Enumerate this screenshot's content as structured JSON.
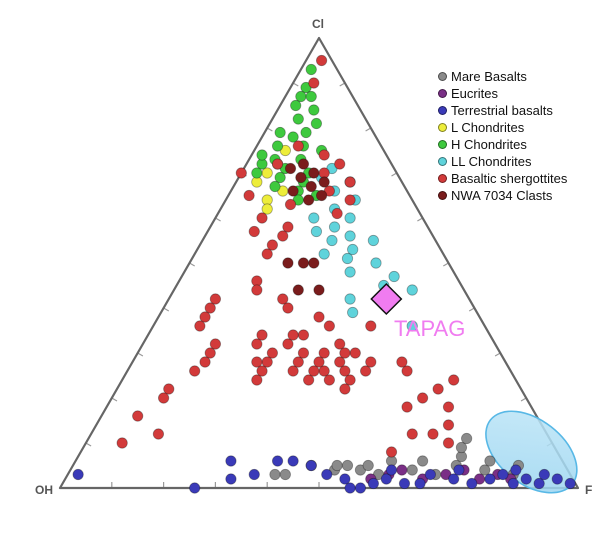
{
  "chart_data": {
    "type": "scatter",
    "subtype": "ternary",
    "vertices": {
      "top": "Cl",
      "left": "OH",
      "right": "F"
    },
    "legend_position": "top-right",
    "series": [
      {
        "name": "Mare Basalts",
        "color": "#8a8a8a",
        "points": [
          [
            0.03,
            0.57,
            0.4
          ],
          [
            0.03,
            0.55,
            0.42
          ],
          [
            0.05,
            0.49,
            0.46
          ],
          [
            0.04,
            0.45,
            0.51
          ],
          [
            0.05,
            0.44,
            0.51
          ],
          [
            0.05,
            0.42,
            0.53
          ],
          [
            0.04,
            0.4,
            0.56
          ],
          [
            0.05,
            0.38,
            0.57
          ],
          [
            0.03,
            0.37,
            0.6
          ],
          [
            0.06,
            0.33,
            0.61
          ],
          [
            0.04,
            0.3,
            0.66
          ],
          [
            0.06,
            0.27,
            0.67
          ],
          [
            0.03,
            0.26,
            0.71
          ],
          [
            0.05,
            0.21,
            0.74
          ],
          [
            0.07,
            0.19,
            0.74
          ],
          [
            0.04,
            0.16,
            0.8
          ],
          [
            0.06,
            0.14,
            0.8
          ],
          [
            0.09,
            0.18,
            0.73
          ],
          [
            0.11,
            0.16,
            0.73
          ],
          [
            0.03,
            0.11,
            0.86
          ],
          [
            0.05,
            0.09,
            0.86
          ]
        ]
      },
      {
        "name": "Eucrites",
        "color": "#7a2f86",
        "points": [
          [
            0.02,
            0.39,
            0.59
          ],
          [
            0.03,
            0.35,
            0.62
          ],
          [
            0.04,
            0.32,
            0.64
          ],
          [
            0.02,
            0.29,
            0.69
          ],
          [
            0.03,
            0.24,
            0.73
          ],
          [
            0.04,
            0.2,
            0.76
          ],
          [
            0.02,
            0.18,
            0.8
          ],
          [
            0.03,
            0.14,
            0.83
          ],
          [
            0.02,
            0.12,
            0.86
          ]
        ]
      },
      {
        "name": "Terrestrial basalts",
        "color": "#3a3ab8",
        "points": [
          [
            0.03,
            0.95,
            0.02
          ],
          [
            0.0,
            0.74,
            0.26
          ],
          [
            0.02,
            0.66,
            0.32
          ],
          [
            0.06,
            0.64,
            0.3
          ],
          [
            0.03,
            0.61,
            0.36
          ],
          [
            0.06,
            0.55,
            0.39
          ],
          [
            0.06,
            0.52,
            0.42
          ],
          [
            0.05,
            0.49,
            0.46
          ],
          [
            0.03,
            0.47,
            0.5
          ],
          [
            0.02,
            0.44,
            0.54
          ],
          [
            0.0,
            0.44,
            0.56
          ],
          [
            0.0,
            0.42,
            0.58
          ],
          [
            0.01,
            0.39,
            0.6
          ],
          [
            0.02,
            0.36,
            0.62
          ],
          [
            0.01,
            0.33,
            0.66
          ],
          [
            0.04,
            0.34,
            0.62
          ],
          [
            0.01,
            0.3,
            0.69
          ],
          [
            0.03,
            0.27,
            0.7
          ],
          [
            0.02,
            0.23,
            0.75
          ],
          [
            0.01,
            0.2,
            0.79
          ],
          [
            0.04,
            0.21,
            0.75
          ],
          [
            0.02,
            0.16,
            0.82
          ],
          [
            0.03,
            0.13,
            0.84
          ],
          [
            0.01,
            0.12,
            0.87
          ],
          [
            0.02,
            0.09,
            0.89
          ],
          [
            0.04,
            0.1,
            0.86
          ],
          [
            0.01,
            0.07,
            0.92
          ],
          [
            0.03,
            0.05,
            0.92
          ],
          [
            0.02,
            0.03,
            0.95
          ],
          [
            0.01,
            0.01,
            0.98
          ]
        ]
      },
      {
        "name": "L Chondrites",
        "color": "#eded3a",
        "points": [
          [
            0.72,
            0.22,
            0.06
          ],
          [
            0.75,
            0.19,
            0.06
          ],
          [
            0.64,
            0.28,
            0.08
          ],
          [
            0.68,
            0.28,
            0.04
          ],
          [
            0.7,
            0.25,
            0.05
          ],
          [
            0.66,
            0.24,
            0.1
          ],
          [
            0.62,
            0.29,
            0.09
          ]
        ]
      },
      {
        "name": "H Chondrites",
        "color": "#3ec93e",
        "points": [
          [
            0.93,
            0.05,
            0.02
          ],
          [
            0.89,
            0.08,
            0.03
          ],
          [
            0.87,
            0.1,
            0.03
          ],
          [
            0.87,
            0.08,
            0.05
          ],
          [
            0.85,
            0.12,
            0.03
          ],
          [
            0.84,
            0.09,
            0.07
          ],
          [
            0.82,
            0.13,
            0.05
          ],
          [
            0.81,
            0.1,
            0.09
          ],
          [
            0.79,
            0.18,
            0.03
          ],
          [
            0.78,
            0.16,
            0.06
          ],
          [
            0.79,
            0.13,
            0.08
          ],
          [
            0.76,
            0.2,
            0.04
          ],
          [
            0.76,
            0.15,
            0.09
          ],
          [
            0.75,
            0.12,
            0.13
          ],
          [
            0.73,
            0.22,
            0.05
          ],
          [
            0.73,
            0.17,
            0.1
          ],
          [
            0.72,
            0.25,
            0.03
          ],
          [
            0.71,
            0.21,
            0.08
          ],
          [
            0.7,
            0.17,
            0.13
          ],
          [
            0.69,
            0.23,
            0.08
          ],
          [
            0.68,
            0.19,
            0.13
          ],
          [
            0.67,
            0.25,
            0.08
          ],
          [
            0.66,
            0.21,
            0.13
          ],
          [
            0.65,
            0.18,
            0.17
          ],
          [
            0.64,
            0.22,
            0.14
          ],
          [
            0.74,
            0.24,
            0.02
          ],
          [
            0.7,
            0.27,
            0.03
          ]
        ]
      },
      {
        "name": "LL Chondrites",
        "color": "#5fd3db",
        "points": [
          [
            0.71,
            0.12,
            0.17
          ],
          [
            0.69,
            0.15,
            0.16
          ],
          [
            0.68,
            0.1,
            0.22
          ],
          [
            0.66,
            0.14,
            0.2
          ],
          [
            0.64,
            0.11,
            0.25
          ],
          [
            0.62,
            0.16,
            0.22
          ],
          [
            0.6,
            0.21,
            0.19
          ],
          [
            0.58,
            0.18,
            0.24
          ],
          [
            0.57,
            0.22,
            0.21
          ],
          [
            0.56,
            0.16,
            0.28
          ],
          [
            0.55,
            0.2,
            0.25
          ],
          [
            0.53,
            0.17,
            0.3
          ],
          [
            0.52,
            0.23,
            0.25
          ],
          [
            0.51,
            0.19,
            0.3
          ],
          [
            0.5,
            0.14,
            0.36
          ],
          [
            0.48,
            0.2,
            0.32
          ],
          [
            0.47,
            0.12,
            0.41
          ],
          [
            0.45,
            0.15,
            0.4
          ],
          [
            0.44,
            0.1,
            0.46
          ],
          [
            0.42,
            0.23,
            0.35
          ],
          [
            0.39,
            0.24,
            0.37
          ],
          [
            0.36,
            0.14,
            0.5
          ],
          [
            0.6,
            0.14,
            0.26
          ],
          [
            0.55,
            0.12,
            0.33
          ]
        ]
      },
      {
        "name": "Basaltic shergottites",
        "color": "#d23a3a",
        "points": [
          [
            0.95,
            0.02,
            0.03
          ],
          [
            0.9,
            0.06,
            0.04
          ],
          [
            0.76,
            0.16,
            0.08
          ],
          [
            0.74,
            0.12,
            0.14
          ],
          [
            0.72,
            0.1,
            0.18
          ],
          [
            0.7,
            0.14,
            0.16
          ],
          [
            0.68,
            0.1,
            0.22
          ],
          [
            0.66,
            0.15,
            0.19
          ],
          [
            0.64,
            0.12,
            0.24
          ],
          [
            0.61,
            0.16,
            0.23
          ],
          [
            0.63,
            0.24,
            0.13
          ],
          [
            0.58,
            0.27,
            0.15
          ],
          [
            0.56,
            0.29,
            0.15
          ],
          [
            0.54,
            0.32,
            0.14
          ],
          [
            0.52,
            0.34,
            0.14
          ],
          [
            0.6,
            0.31,
            0.09
          ],
          [
            0.7,
            0.3,
            0.0
          ],
          [
            0.72,
            0.22,
            0.06
          ],
          [
            0.65,
            0.31,
            0.04
          ],
          [
            0.57,
            0.34,
            0.09
          ],
          [
            0.46,
            0.39,
            0.15
          ],
          [
            0.44,
            0.4,
            0.16
          ],
          [
            0.42,
            0.36,
            0.22
          ],
          [
            0.4,
            0.36,
            0.24
          ],
          [
            0.38,
            0.31,
            0.31
          ],
          [
            0.42,
            0.49,
            0.09
          ],
          [
            0.4,
            0.51,
            0.09
          ],
          [
            0.38,
            0.53,
            0.09
          ],
          [
            0.36,
            0.55,
            0.09
          ],
          [
            0.34,
            0.44,
            0.22
          ],
          [
            0.32,
            0.46,
            0.22
          ],
          [
            0.3,
            0.44,
            0.26
          ],
          [
            0.28,
            0.46,
            0.26
          ],
          [
            0.26,
            0.42,
            0.32
          ],
          [
            0.28,
            0.4,
            0.32
          ],
          [
            0.3,
            0.34,
            0.36
          ],
          [
            0.26,
            0.36,
            0.38
          ],
          [
            0.24,
            0.32,
            0.44
          ],
          [
            0.3,
            0.28,
            0.42
          ],
          [
            0.26,
            0.28,
            0.46
          ],
          [
            0.34,
            0.36,
            0.3
          ],
          [
            0.32,
            0.3,
            0.38
          ],
          [
            0.36,
            0.3,
            0.34
          ],
          [
            0.28,
            0.32,
            0.4
          ],
          [
            0.24,
            0.4,
            0.36
          ],
          [
            0.22,
            0.34,
            0.44
          ],
          [
            0.28,
            0.36,
            0.36
          ],
          [
            0.3,
            0.38,
            0.32
          ],
          [
            0.32,
            0.4,
            0.28
          ],
          [
            0.26,
            0.38,
            0.36
          ],
          [
            0.3,
            0.3,
            0.4
          ],
          [
            0.28,
            0.26,
            0.46
          ],
          [
            0.24,
            0.36,
            0.4
          ],
          [
            0.26,
            0.32,
            0.42
          ],
          [
            0.34,
            0.38,
            0.28
          ],
          [
            0.28,
            0.48,
            0.24
          ],
          [
            0.26,
            0.48,
            0.26
          ],
          [
            0.24,
            0.5,
            0.26
          ],
          [
            0.32,
            0.54,
            0.14
          ],
          [
            0.3,
            0.56,
            0.14
          ],
          [
            0.28,
            0.58,
            0.14
          ],
          [
            0.26,
            0.61,
            0.13
          ],
          [
            0.22,
            0.68,
            0.1
          ],
          [
            0.2,
            0.7,
            0.1
          ],
          [
            0.16,
            0.77,
            0.07
          ],
          [
            0.12,
            0.75,
            0.13
          ],
          [
            0.1,
            0.83,
            0.07
          ],
          [
            0.2,
            0.2,
            0.6
          ],
          [
            0.22,
            0.16,
            0.62
          ],
          [
            0.24,
            0.12,
            0.64
          ],
          [
            0.18,
            0.16,
            0.66
          ],
          [
            0.12,
            0.26,
            0.62
          ],
          [
            0.12,
            0.22,
            0.66
          ],
          [
            0.1,
            0.2,
            0.7
          ],
          [
            0.26,
            0.2,
            0.54
          ],
          [
            0.08,
            0.32,
            0.6
          ],
          [
            0.18,
            0.24,
            0.58
          ],
          [
            0.28,
            0.2,
            0.52
          ],
          [
            0.36,
            0.22,
            0.42
          ],
          [
            0.14,
            0.18,
            0.68
          ]
        ]
      },
      {
        "name": "NWA 7034 Clasts",
        "color": "#7a1c1c",
        "points": [
          [
            0.72,
            0.17,
            0.11
          ],
          [
            0.71,
            0.2,
            0.09
          ],
          [
            0.7,
            0.16,
            0.14
          ],
          [
            0.69,
            0.19,
            0.12
          ],
          [
            0.68,
            0.15,
            0.17
          ],
          [
            0.67,
            0.18,
            0.15
          ],
          [
            0.66,
            0.22,
            0.12
          ],
          [
            0.65,
            0.17,
            0.18
          ],
          [
            0.64,
            0.2,
            0.16
          ],
          [
            0.5,
            0.31,
            0.19
          ],
          [
            0.5,
            0.28,
            0.22
          ],
          [
            0.5,
            0.26,
            0.24
          ],
          [
            0.44,
            0.32,
            0.24
          ],
          [
            0.44,
            0.28,
            0.28
          ]
        ]
      },
      {
        "name": "TAPAG",
        "label": "TAPAG",
        "color": "#f07cf0",
        "marker": "diamond",
        "points": [
          [
            0.42,
            0.16,
            0.42
          ]
        ]
      }
    ],
    "ellipse": {
      "color": "#a7dcf3",
      "center": [
        0.08,
        0.05,
        0.87
      ]
    }
  }
}
